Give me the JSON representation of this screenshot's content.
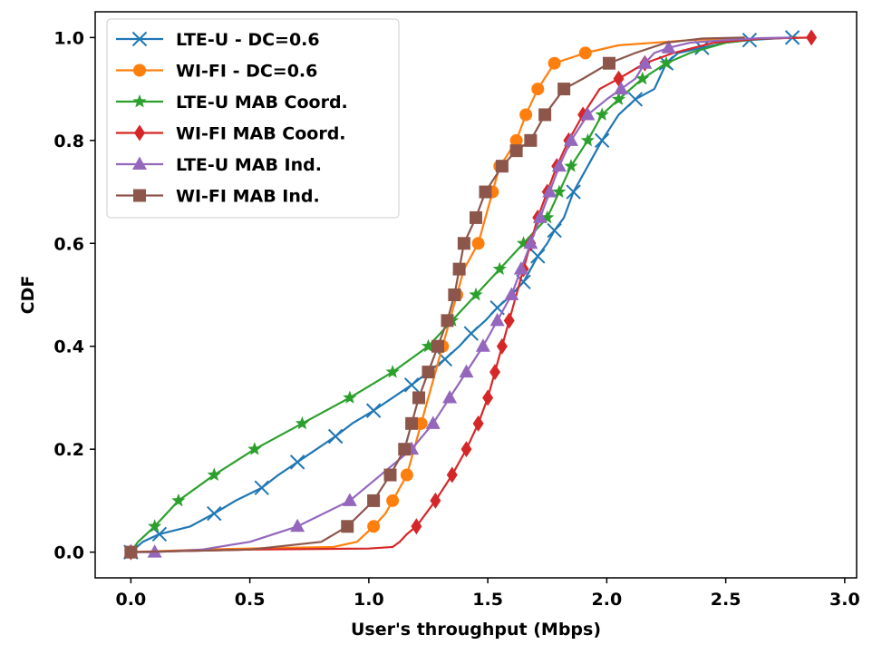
{
  "chart_data": {
    "type": "line",
    "title": "",
    "xlabel": "User's throughput (Mbps)",
    "ylabel": "CDF",
    "xlim": [
      -0.15,
      3.05
    ],
    "ylim": [
      -0.05,
      1.05
    ],
    "xticks": [
      0.0,
      0.5,
      1.0,
      1.5,
      2.0,
      2.5,
      3.0
    ],
    "xtick_labels": [
      "0.0",
      "0.5",
      "1.0",
      "1.5",
      "2.0",
      "2.5",
      "3.0"
    ],
    "yticks": [
      0.0,
      0.2,
      0.4,
      0.6,
      0.8,
      1.0
    ],
    "ytick_labels": [
      "0.0",
      "0.2",
      "0.4",
      "0.6",
      "0.8",
      "1.0"
    ],
    "grid": false,
    "legend_position": "top-left",
    "series": [
      {
        "name": "LTE-U - DC=0.6",
        "color": "#1f77b4",
        "marker": "x",
        "x": [
          0.0,
          0.05,
          0.12,
          0.25,
          0.35,
          0.44,
          0.55,
          0.62,
          0.7,
          0.78,
          0.86,
          0.93,
          1.02,
          1.1,
          1.18,
          1.25,
          1.32,
          1.38,
          1.43,
          1.49,
          1.54,
          1.6,
          1.65,
          1.68,
          1.71,
          1.75,
          1.78,
          1.82,
          1.86,
          1.92,
          1.98,
          2.05,
          2.12,
          2.2,
          2.25,
          2.3,
          2.4,
          2.5,
          2.6,
          2.7,
          2.78
        ],
        "y": [
          0.0,
          0.02,
          0.035,
          0.05,
          0.075,
          0.1,
          0.125,
          0.15,
          0.175,
          0.2,
          0.225,
          0.25,
          0.275,
          0.3,
          0.325,
          0.35,
          0.375,
          0.4,
          0.425,
          0.45,
          0.475,
          0.5,
          0.525,
          0.55,
          0.575,
          0.6,
          0.625,
          0.65,
          0.7,
          0.75,
          0.8,
          0.85,
          0.88,
          0.9,
          0.95,
          0.97,
          0.98,
          0.99,
          0.995,
          0.998,
          1.0
        ],
        "marker_every": 2
      },
      {
        "name": "WI-FI - DC=0.6",
        "color": "#ff7f0e",
        "marker": "o",
        "x": [
          0.0,
          0.3,
          0.6,
          0.85,
          0.95,
          1.02,
          1.07,
          1.1,
          1.13,
          1.16,
          1.19,
          1.22,
          1.25,
          1.28,
          1.31,
          1.34,
          1.37,
          1.4,
          1.43,
          1.46,
          1.49,
          1.52,
          1.55,
          1.58,
          1.62,
          1.66,
          1.71,
          1.78,
          1.91,
          2.05,
          2.2,
          2.35,
          2.5,
          2.58
        ],
        "y": [
          0.0,
          0.005,
          0.008,
          0.01,
          0.02,
          0.05,
          0.075,
          0.1,
          0.125,
          0.15,
          0.2,
          0.25,
          0.3,
          0.35,
          0.4,
          0.45,
          0.5,
          0.55,
          0.575,
          0.6,
          0.65,
          0.7,
          0.75,
          0.77,
          0.8,
          0.85,
          0.9,
          0.95,
          0.97,
          0.985,
          0.99,
          0.995,
          0.998,
          1.0
        ],
        "marker_indices": [
          0,
          5,
          7,
          9,
          11,
          14,
          16,
          19,
          21,
          22,
          24,
          25,
          26,
          27,
          28
        ]
      },
      {
        "name": "LTE-U MAB Coord.",
        "color": "#2ca02c",
        "marker": "*",
        "x": [
          0.0,
          0.03,
          0.1,
          0.2,
          0.35,
          0.52,
          0.72,
          0.92,
          1.1,
          1.25,
          1.35,
          1.45,
          1.55,
          1.65,
          1.75,
          1.8,
          1.85,
          1.92,
          1.98,
          2.05,
          2.15,
          2.25,
          2.35,
          2.5,
          2.65,
          2.8
        ],
        "y": [
          0.0,
          0.02,
          0.05,
          0.1,
          0.15,
          0.2,
          0.25,
          0.3,
          0.35,
          0.4,
          0.45,
          0.5,
          0.55,
          0.6,
          0.65,
          0.7,
          0.75,
          0.8,
          0.85,
          0.88,
          0.92,
          0.95,
          0.97,
          0.99,
          0.998,
          1.0
        ],
        "marker_indices": [
          0,
          2,
          3,
          4,
          5,
          6,
          7,
          8,
          9,
          10,
          11,
          12,
          13,
          14,
          15,
          16,
          17,
          18,
          19,
          20,
          21
        ]
      },
      {
        "name": "WI-FI MAB Coord.",
        "color": "#d62728",
        "marker": "D",
        "x": [
          0.0,
          0.5,
          1.0,
          1.1,
          1.13,
          1.16,
          1.2,
          1.28,
          1.35,
          1.41,
          1.46,
          1.5,
          1.53,
          1.56,
          1.59,
          1.62,
          1.65,
          1.68,
          1.71,
          1.75,
          1.79,
          1.84,
          1.9,
          1.97,
          2.05,
          2.16,
          2.28,
          2.45,
          2.65,
          2.86
        ],
        "y": [
          0.0,
          0.005,
          0.007,
          0.01,
          0.02,
          0.035,
          0.05,
          0.1,
          0.15,
          0.2,
          0.25,
          0.3,
          0.35,
          0.4,
          0.45,
          0.5,
          0.55,
          0.6,
          0.65,
          0.7,
          0.75,
          0.8,
          0.85,
          0.9,
          0.92,
          0.95,
          0.97,
          0.99,
          0.998,
          1.0
        ],
        "marker_indices": [
          0,
          6,
          7,
          8,
          9,
          10,
          11,
          12,
          13,
          14,
          16,
          17,
          18,
          19,
          20,
          21,
          22,
          24,
          25,
          29
        ]
      },
      {
        "name": "LTE-U MAB Ind.",
        "color": "#9467bd",
        "marker": "^",
        "x": [
          0.0,
          0.1,
          0.3,
          0.5,
          0.7,
          0.92,
          1.05,
          1.18,
          1.27,
          1.34,
          1.41,
          1.48,
          1.54,
          1.6,
          1.64,
          1.68,
          1.72,
          1.76,
          1.8,
          1.85,
          1.92,
          2.0,
          2.06,
          2.12,
          2.16,
          2.2,
          2.26,
          2.35,
          2.5,
          2.65,
          2.78
        ],
        "y": [
          0.0,
          0.0,
          0.005,
          0.02,
          0.05,
          0.1,
          0.15,
          0.2,
          0.25,
          0.3,
          0.35,
          0.4,
          0.45,
          0.5,
          0.55,
          0.6,
          0.65,
          0.7,
          0.75,
          0.8,
          0.85,
          0.88,
          0.9,
          0.92,
          0.95,
          0.97,
          0.98,
          0.99,
          0.995,
          0.999,
          1.0
        ],
        "marker_indices": [
          0,
          1,
          4,
          5,
          7,
          8,
          9,
          10,
          11,
          12,
          13,
          14,
          15,
          16,
          17,
          18,
          19,
          20,
          22,
          24,
          26
        ]
      },
      {
        "name": "WI-FI MAB Ind.",
        "color": "#8c564b",
        "marker": "s",
        "x": [
          0.0,
          0.5,
          0.8,
          0.91,
          1.02,
          1.09,
          1.15,
          1.18,
          1.21,
          1.25,
          1.29,
          1.33,
          1.36,
          1.38,
          1.4,
          1.42,
          1.45,
          1.49,
          1.56,
          1.62,
          1.68,
          1.74,
          1.82,
          1.9,
          2.01,
          2.12,
          2.25,
          2.4,
          2.58
        ],
        "y": [
          0.0,
          0.005,
          0.02,
          0.05,
          0.1,
          0.15,
          0.2,
          0.25,
          0.3,
          0.35,
          0.4,
          0.45,
          0.5,
          0.55,
          0.6,
          0.62,
          0.65,
          0.7,
          0.75,
          0.78,
          0.8,
          0.85,
          0.9,
          0.92,
          0.95,
          0.97,
          0.99,
          0.998,
          1.0
        ],
        "marker_indices": [
          0,
          3,
          4,
          5,
          6,
          7,
          8,
          9,
          10,
          11,
          12,
          13,
          14,
          16,
          17,
          18,
          19,
          20,
          21,
          22,
          24
        ]
      }
    ]
  }
}
